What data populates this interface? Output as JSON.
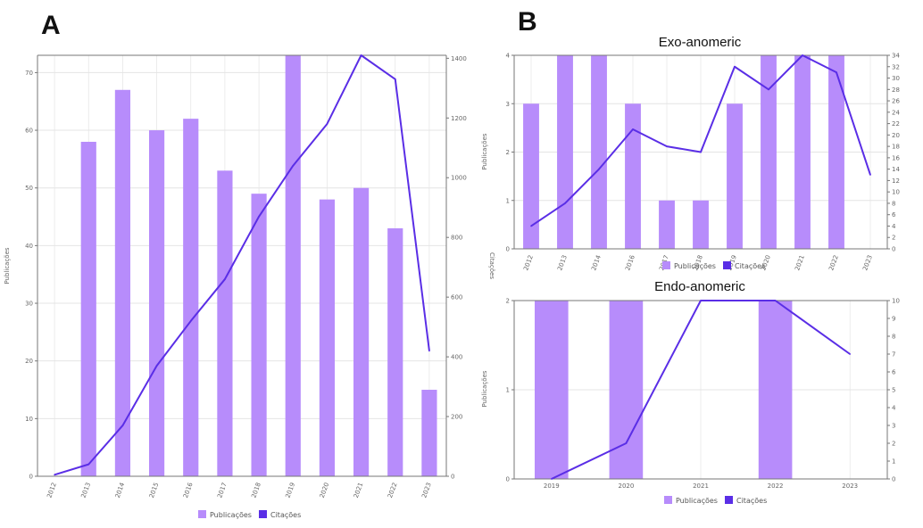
{
  "panels": {
    "a": "A",
    "b": "B"
  },
  "colors": {
    "bar": "#b78cfb",
    "line": "#5a2ee6",
    "axis": "#777777",
    "grid": "#e4e4e4"
  },
  "chart_data": [
    {
      "id": "A",
      "type": "bar+line",
      "title": "",
      "x": [
        "2012",
        "2013",
        "2014",
        "2015",
        "2016",
        "2017",
        "2018",
        "2019",
        "2020",
        "2021",
        "2022",
        "2023"
      ],
      "series": [
        {
          "name": "Publicações",
          "type": "bar",
          "axis": "left",
          "values": [
            0,
            58,
            67,
            60,
            62,
            53,
            49,
            73,
            48,
            50,
            43,
            15
          ]
        },
        {
          "name": "Citações",
          "type": "line",
          "axis": "right",
          "values": [
            5,
            40,
            170,
            370,
            520,
            660,
            870,
            1040,
            1180,
            1410,
            1330,
            420
          ]
        }
      ],
      "ylabel": "Publicações",
      "y2label": "Citações",
      "ylim": [
        0,
        73
      ],
      "yticks": [
        0,
        10,
        20,
        30,
        40,
        50,
        60,
        70
      ],
      "y2lim": [
        0,
        1410
      ],
      "y2ticks": [
        0,
        200,
        400,
        600,
        800,
        1000,
        1200,
        1400
      ],
      "legend": "bottom"
    },
    {
      "id": "B-top",
      "type": "bar+line",
      "title": "Exo-anomeric",
      "x": [
        "2012",
        "2013",
        "2014",
        "2016",
        "2017",
        "2018",
        "2019",
        "2020",
        "2021",
        "2022",
        "2023"
      ],
      "series": [
        {
          "name": "Publicações",
          "type": "bar",
          "axis": "left",
          "values": [
            3,
            4,
            4,
            3,
            1,
            1,
            3,
            4,
            4,
            4,
            0
          ]
        },
        {
          "name": "Citações",
          "type": "line",
          "axis": "right",
          "values": [
            4,
            8,
            14,
            21,
            18,
            17,
            32,
            28,
            34,
            31,
            13
          ]
        }
      ],
      "ylabel": "Publicações",
      "ylim": [
        0,
        4
      ],
      "yticks": [
        0,
        1,
        2,
        3,
        4
      ],
      "y2lim": [
        0,
        34
      ],
      "y2ticks": [
        0,
        2,
        4,
        6,
        8,
        10,
        12,
        14,
        16,
        18,
        20,
        22,
        24,
        26,
        28,
        30,
        32,
        34
      ],
      "legend": "bottom"
    },
    {
      "id": "B-bottom",
      "type": "bar+line",
      "title": "Endo-anomeric",
      "x": [
        "2019",
        "2020",
        "2021",
        "2022",
        "2023"
      ],
      "series": [
        {
          "name": "Publicações",
          "type": "bar",
          "axis": "left",
          "values": [
            2,
            2,
            0,
            2,
            0
          ]
        },
        {
          "name": "Citações",
          "type": "line",
          "axis": "right",
          "values": [
            0,
            2,
            10,
            10,
            7
          ]
        }
      ],
      "ylabel": "Publicações",
      "ylim": [
        0,
        2
      ],
      "yticks": [
        0,
        1,
        2
      ],
      "y2lim": [
        0,
        10
      ],
      "y2ticks": [
        0,
        1,
        2,
        3,
        4,
        5,
        6,
        7,
        8,
        9,
        10
      ],
      "legend": "bottom"
    }
  ]
}
